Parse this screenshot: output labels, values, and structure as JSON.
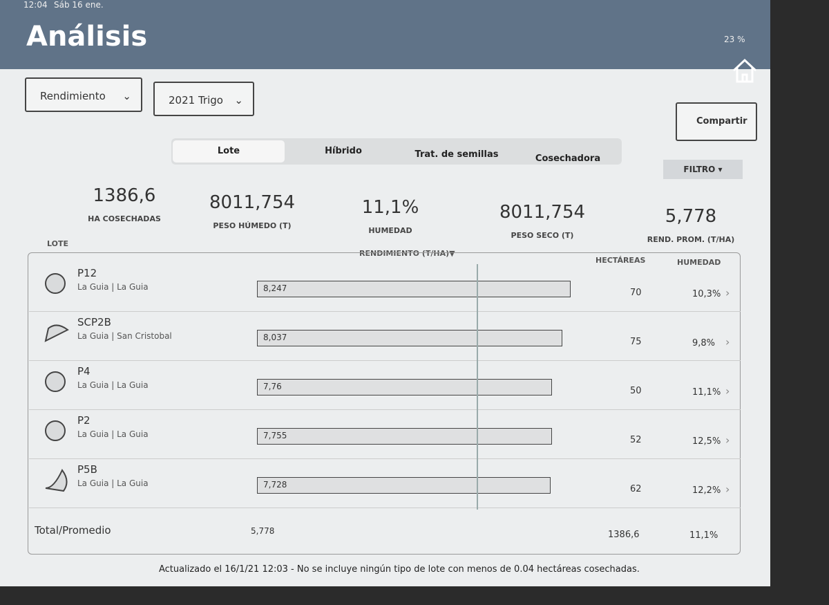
{
  "status": {
    "time": "12:04",
    "date": "Sáb 16 ene.",
    "battery": "23 %"
  },
  "header": {
    "title": "Análisis"
  },
  "controls": {
    "dropdowns": [
      "Rendimiento",
      "2021 Trigo"
    ],
    "share": "Compartir",
    "tabs": [
      "Lote",
      "Híbrido",
      "Trat. de semillas",
      "Cosechadora"
    ],
    "filter": "FILTRO"
  },
  "stats": [
    {
      "value": "1386,6",
      "label": "HA COSECHADAS"
    },
    {
      "value": "8011,754",
      "label": "PESO HÚMEDO (T)"
    },
    {
      "value": "11,1%",
      "label": "HUMEDAD"
    },
    {
      "value": "8011,754",
      "label": "PESO SECO (T)"
    },
    {
      "value": "5,778",
      "label": "REND. PROM. (T/HA)"
    }
  ],
  "table": {
    "headers": [
      "LOTE",
      "RENDIMIENTO (T/HA)",
      "HECTÁREAS",
      "HUMEDAD"
    ],
    "rows": [
      {
        "name": "P12",
        "location": "La Guia | La Guia",
        "yield": {
          "value": 8.247,
          "label": "8,247"
        },
        "hectares": 70,
        "humidity": "10,3%"
      },
      {
        "name": "SCP2B",
        "location": "La Guia | San Cristobal",
        "yield": {
          "value": 8.037,
          "label": "8,037"
        },
        "hectares": 75,
        "humidity": "9,8%"
      },
      {
        "name": "P4",
        "location": "La Guia | La Guia",
        "yield": {
          "value": 7.76,
          "label": "7,76"
        },
        "hectares": 50,
        "humidity": "11,1%"
      },
      {
        "name": "P2",
        "location": "La Guia | La Guia",
        "yield": {
          "value": 7.755,
          "label": "7,755"
        },
        "hectares": 52,
        "humidity": "12,5%"
      },
      {
        "name": "P5B",
        "location": "La Guia | La Guia",
        "yield": {
          "value": 7.728,
          "label": "7,728"
        },
        "hectares": 62,
        "humidity": "12,2%"
      }
    ],
    "total": {
      "label": "Total/Promedio",
      "yield": {
        "value": 5.778,
        "label": "5,778"
      },
      "hectares": "1386,6",
      "humidity": "11,1%"
    }
  },
  "footer": "Actualizado el 16/1/21 12:03 - No se incluye ningún tipo de lote con menos de 0.04 hectáreas cosechadas."
}
